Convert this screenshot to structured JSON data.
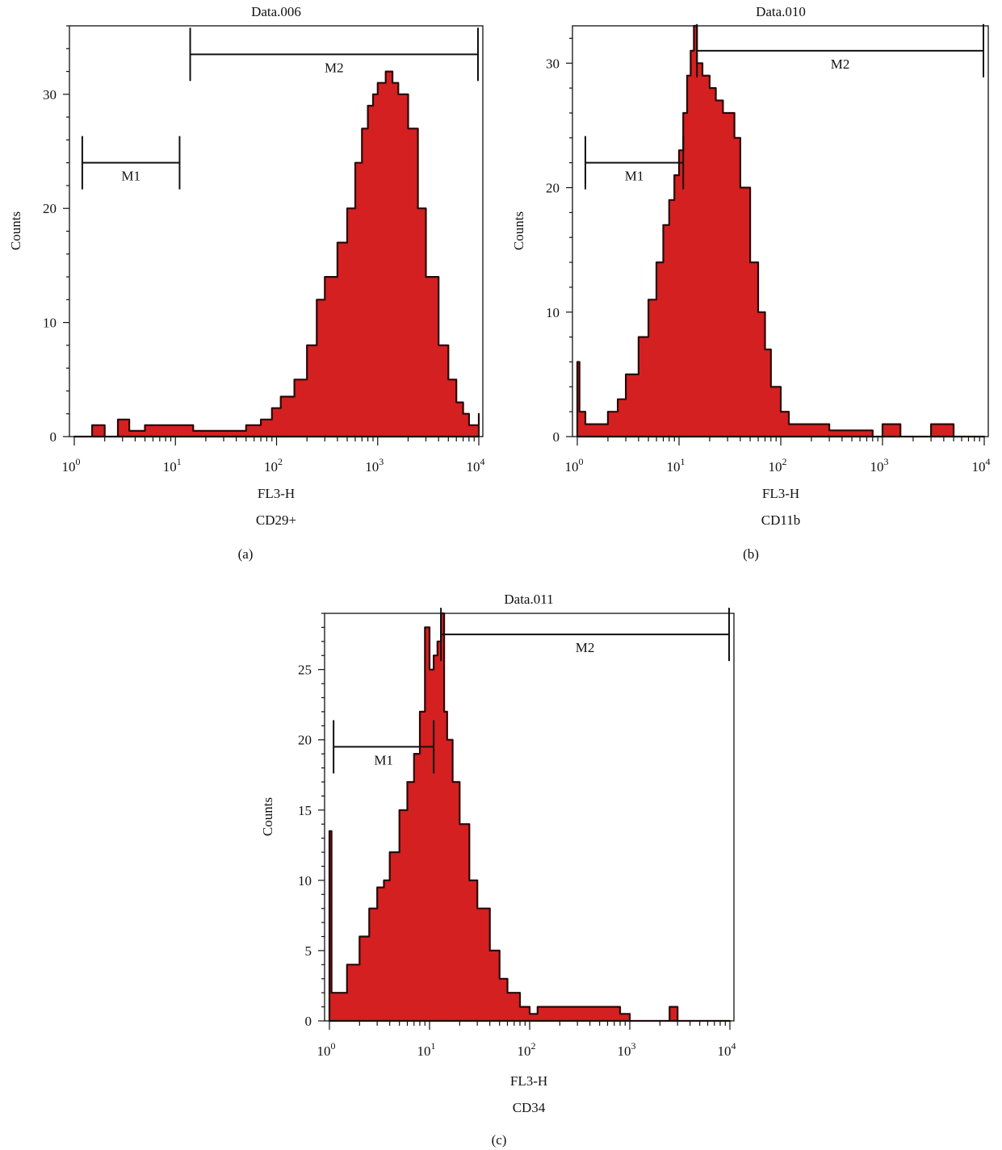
{
  "figure": {
    "panels": [
      {
        "id": "a",
        "caption": "(a)",
        "title": "Data.006",
        "xlabel": "FL3-H",
        "marker": "CD29+",
        "ylabel": "Counts"
      },
      {
        "id": "b",
        "caption": "(b)",
        "title": "Data.010",
        "xlabel": "FL3-H",
        "marker": "CD11b",
        "ylabel": "Counts"
      },
      {
        "id": "c",
        "caption": "(c)",
        "title": "Data.011",
        "xlabel": "FL3-H",
        "marker": "CD34",
        "ylabel": "Counts"
      }
    ]
  },
  "colors": {
    "fill": "#d42020",
    "edge": "#2a0808",
    "axis": "#111111"
  },
  "chart_data": [
    {
      "type": "area",
      "title": "Data.006",
      "xlabel": "FL3-H",
      "subtitle": "CD29+",
      "ylabel": "Counts",
      "xscale": "log",
      "xlim": [
        1,
        10000
      ],
      "ylim": [
        0,
        36
      ],
      "xticks": [
        1,
        10,
        100,
        1000,
        10000
      ],
      "xtick_labels": [
        {
          "base": "10",
          "exp": "0"
        },
        {
          "base": "10",
          "exp": "1"
        },
        {
          "base": "10",
          "exp": "2"
        },
        {
          "base": "10",
          "exp": "3"
        },
        {
          "base": "10",
          "exp": "4"
        }
      ],
      "yticks": [
        0,
        10,
        20,
        30
      ],
      "markers": [
        {
          "name": "M1",
          "x_start": 1.2,
          "x_end": 11,
          "y": 24
        },
        {
          "name": "M2",
          "x_start": 14,
          "x_end": 10000,
          "y": 33.5
        }
      ],
      "series": [
        {
          "x": [
            1,
            1.5,
            2,
            2.7,
            3.5,
            5,
            7,
            10,
            15,
            20,
            30,
            50,
            70,
            90,
            110,
            150,
            200,
            250,
            300,
            400,
            500,
            600,
            700,
            800,
            900,
            1000,
            1200,
            1400,
            1600,
            2000,
            2500,
            3000,
            4000,
            5000,
            6000,
            7000,
            8000,
            9000,
            10000
          ],
          "y": [
            0,
            1,
            0,
            1.5,
            0.5,
            1,
            1,
            1,
            0.5,
            0.5,
            0.5,
            1,
            1.5,
            2.5,
            3.5,
            5,
            8,
            12,
            14,
            17,
            20,
            24,
            27,
            29,
            30,
            31,
            32,
            31,
            30,
            27,
            20,
            14,
            8,
            5,
            3,
            2,
            1,
            1,
            2
          ]
        }
      ]
    },
    {
      "type": "area",
      "title": "Data.010",
      "xlabel": "FL3-H",
      "subtitle": "CD11b",
      "ylabel": "Counts",
      "xscale": "log",
      "xlim": [
        1,
        10000
      ],
      "ylim": [
        0,
        33
      ],
      "xticks": [
        1,
        10,
        100,
        1000,
        10000
      ],
      "xtick_labels": [
        {
          "base": "10",
          "exp": "0"
        },
        {
          "base": "10",
          "exp": "1"
        },
        {
          "base": "10",
          "exp": "2"
        },
        {
          "base": "10",
          "exp": "3"
        },
        {
          "base": "10",
          "exp": "4"
        }
      ],
      "yticks": [
        0,
        10,
        20,
        30
      ],
      "markers": [
        {
          "name": "M1",
          "x_start": 1.2,
          "x_end": 11,
          "y": 22
        },
        {
          "name": "M2",
          "x_start": 15,
          "x_end": 10000,
          "y": 31
        }
      ],
      "series": [
        {
          "x": [
            1,
            1.05,
            1.2,
            1.5,
            2,
            2.5,
            3,
            4,
            5,
            6,
            7,
            8,
            9,
            10,
            11,
            12,
            13,
            14,
            15,
            17,
            20,
            23,
            27,
            30,
            35,
            40,
            50,
            60,
            70,
            80,
            100,
            120,
            150,
            200,
            300,
            500,
            800,
            1000,
            1500,
            2000,
            3000,
            5000,
            10000
          ],
          "y": [
            6,
            2,
            1,
            1,
            2,
            3,
            5,
            8,
            11,
            14,
            17,
            19,
            21,
            23,
            26,
            29,
            31,
            33,
            30,
            29,
            28,
            27,
            26,
            26,
            24,
            20,
            14,
            10,
            7,
            4,
            2,
            1,
            1,
            1,
            0.5,
            0.5,
            0,
            1,
            0,
            0,
            1,
            0,
            0
          ]
        }
      ]
    },
    {
      "type": "area",
      "title": "Data.011",
      "xlabel": "FL3-H",
      "subtitle": "CD34",
      "ylabel": "Counts",
      "xscale": "log",
      "xlim": [
        1,
        10000
      ],
      "ylim": [
        0,
        29
      ],
      "xticks": [
        1,
        10,
        100,
        1000,
        10000
      ],
      "xtick_labels": [
        {
          "base": "10",
          "exp": "0"
        },
        {
          "base": "10",
          "exp": "1"
        },
        {
          "base": "10",
          "exp": "2"
        },
        {
          "base": "10",
          "exp": "3"
        },
        {
          "base": "10",
          "exp": "4"
        }
      ],
      "yticks": [
        0,
        5,
        10,
        15,
        20,
        25
      ],
      "markers": [
        {
          "name": "M1",
          "x_start": 1.1,
          "x_end": 11,
          "y": 19.5
        },
        {
          "name": "M2",
          "x_start": 13,
          "x_end": 10000,
          "y": 27.5
        }
      ],
      "series": [
        {
          "x": [
            1,
            1.05,
            1.2,
            1.5,
            2,
            2.5,
            3,
            3.5,
            4,
            5,
            6,
            7,
            8,
            9,
            10,
            11,
            12,
            13,
            14,
            15,
            17,
            20,
            25,
            30,
            40,
            50,
            60,
            80,
            100,
            120,
            150,
            200,
            300,
            500,
            800,
            1000,
            2000,
            2500,
            3000,
            10000
          ],
          "y": [
            13.5,
            2,
            2,
            4,
            6,
            8,
            9.5,
            10,
            12,
            15,
            17,
            19,
            22,
            28,
            25,
            26,
            27,
            29,
            22,
            20,
            17,
            14,
            10,
            8,
            5,
            3,
            2,
            1,
            0.5,
            1,
            1,
            1,
            1,
            1,
            0.5,
            0,
            0,
            1,
            0,
            0
          ]
        }
      ]
    }
  ]
}
